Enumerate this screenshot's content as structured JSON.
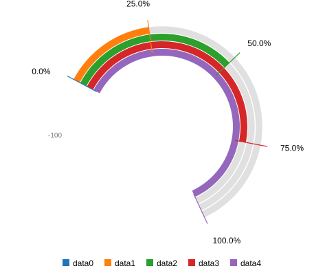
{
  "chart_data": {
    "type": "gauge",
    "min_label": "-100",
    "tick_labels": [
      "0.0%",
      "25.0%",
      "50.0%",
      "75.0%",
      "100.0%"
    ],
    "track_color": "#e0e0e0",
    "series": [
      {
        "name": "data0",
        "color": "#1f77b4",
        "value_fraction": 0.0
      },
      {
        "name": "data1",
        "color": "#ff7f0e",
        "value_fraction": 0.25
      },
      {
        "name": "data2",
        "color": "#2ca02c",
        "value_fraction": 0.5
      },
      {
        "name": "data3",
        "color": "#d62728",
        "value_fraction": 0.75
      },
      {
        "name": "data4",
        "color": "#9467bd",
        "value_fraction": 1.0
      }
    ],
    "legend_position": "bottom"
  }
}
